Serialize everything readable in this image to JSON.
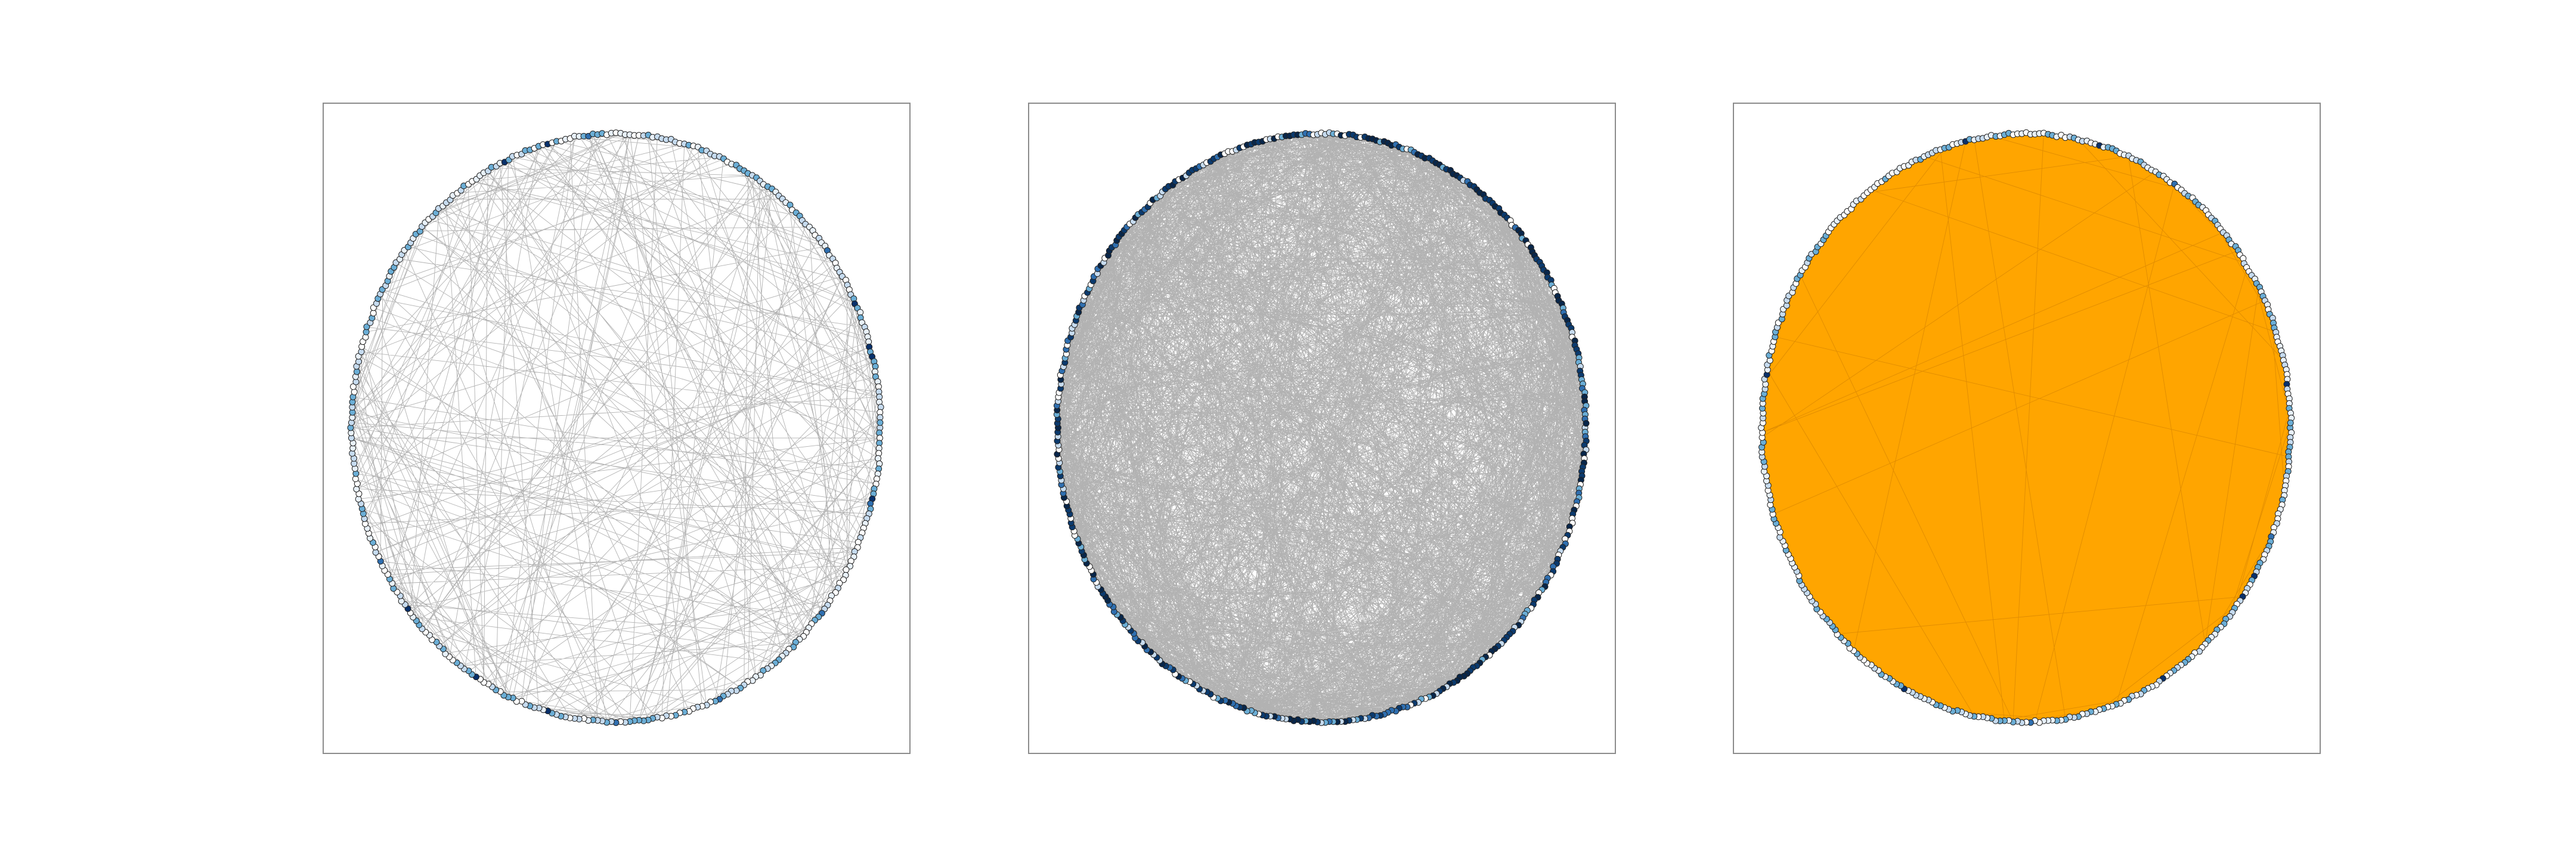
{
  "panels": [
    {
      "id": "sparse-circular-network",
      "node_count": 360,
      "edge_count": 320,
      "node_colormap": [
        "#ffffff",
        "#e8f1fa",
        "#c6dbef",
        "#6baed6",
        "#2f6fb0",
        "#08306b"
      ],
      "node_dark_share": 0.04,
      "edge_color": "#555555",
      "edge_opacity": 0.45,
      "fill_color": null
    },
    {
      "id": "dense-circular-network",
      "node_count": 420,
      "edge_count": 2600,
      "node_colormap": [
        "#ffffff",
        "#c6dbef",
        "#6baed6",
        "#2f6fb0",
        "#0b3a6e",
        "#08264a"
      ],
      "node_dark_share": 0.5,
      "edge_color": "#222222",
      "edge_opacity": 0.35,
      "fill_color": null
    },
    {
      "id": "filled-circular-network",
      "node_count": 380,
      "edge_count": 40,
      "node_colormap": [
        "#ffffff",
        "#e8f1fa",
        "#c6dbef",
        "#6baed6",
        "#2f6fb0",
        "#08306b"
      ],
      "node_dark_share": 0.03,
      "edge_color": "#c77800",
      "edge_opacity": 0.55,
      "fill_color": "#ffa500"
    }
  ]
}
